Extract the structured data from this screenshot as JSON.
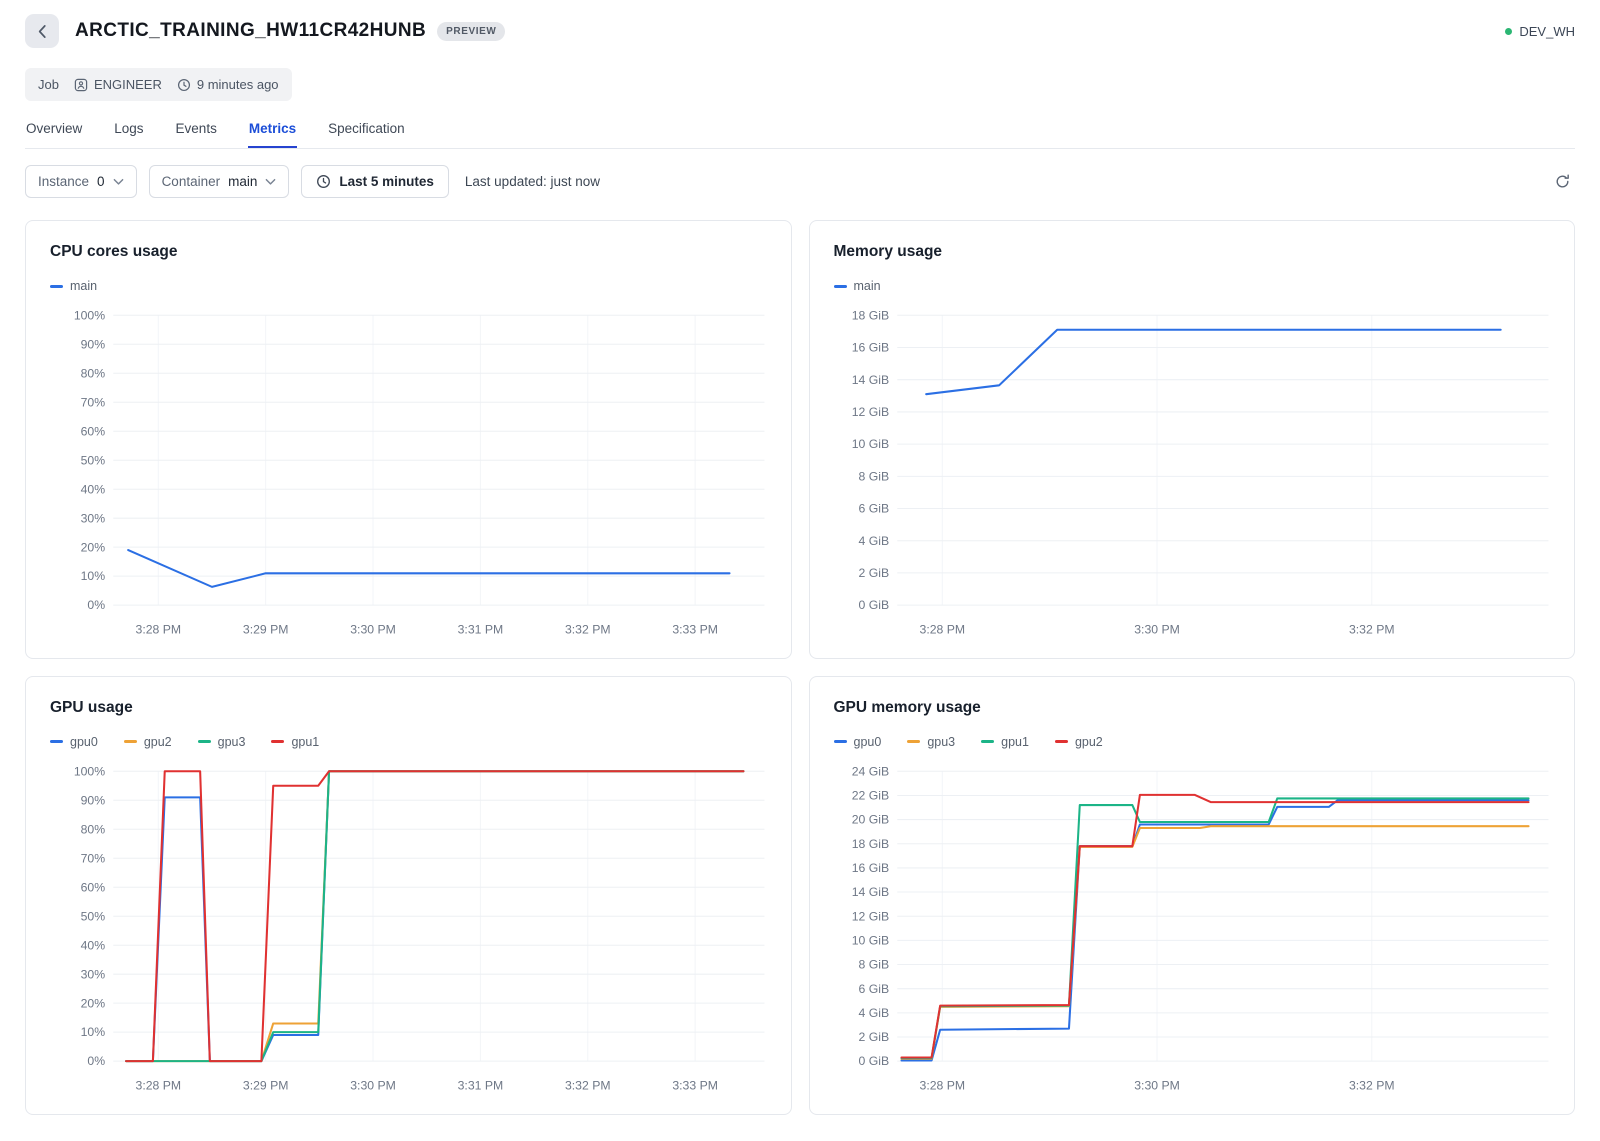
{
  "header": {
    "title": "ARCTIC_TRAINING_HW11CR42HUNB",
    "badge": "PREVIEW",
    "warehouse": "DEV_WH"
  },
  "theme": {
    "accent_blue": "#1c4ed8",
    "status_green": "#2bb673"
  },
  "meta": {
    "type": "Job",
    "role": "ENGINEER",
    "time": "9 minutes ago"
  },
  "tabs": [
    {
      "label": "Overview",
      "active": false
    },
    {
      "label": "Logs",
      "active": false
    },
    {
      "label": "Events",
      "active": false
    },
    {
      "label": "Metrics",
      "active": true
    },
    {
      "label": "Specification",
      "active": false
    }
  ],
  "filters": {
    "instance_label": "Instance",
    "instance_value": "0",
    "container_label": "Container",
    "container_value": "main",
    "range_label": "Last 5 minutes",
    "last_updated": "Last updated: just now"
  },
  "chart_data": [
    {
      "type": "line",
      "title": "CPU cores usage",
      "ylabel": "percent",
      "ylim": [
        0,
        100
      ],
      "y_ticks": [
        "0%",
        "10%",
        "20%",
        "30%",
        "40%",
        "50%",
        "60%",
        "70%",
        "80%",
        "90%",
        "100%"
      ],
      "x_domain": [
        0,
        5.95
      ],
      "x_note": "t in minutes, 0 = 3:27:36 PM",
      "x_ticks": [
        {
          "t": 0.4,
          "label": "3:28 PM"
        },
        {
          "t": 1.4,
          "label": "3:29 PM"
        },
        {
          "t": 2.4,
          "label": "3:30 PM"
        },
        {
          "t": 3.4,
          "label": "3:31 PM"
        },
        {
          "t": 4.4,
          "label": "3:32 PM"
        },
        {
          "t": 5.4,
          "label": "3:33 PM"
        }
      ],
      "series": [
        {
          "name": "main",
          "color": "#2b6fe4",
          "points": [
            [
              0.12,
              19
            ],
            [
              0.9,
              6.3
            ],
            [
              1.4,
              11
            ],
            [
              5.72,
              11
            ]
          ]
        }
      ]
    },
    {
      "type": "line",
      "title": "Memory usage",
      "ylabel": "GiB",
      "ylim": [
        0,
        18
      ],
      "y_ticks": [
        "0 GiB",
        "2 GiB",
        "4 GiB",
        "6 GiB",
        "8 GiB",
        "10 GiB",
        "12 GiB",
        "14 GiB",
        "16 GiB",
        "18 GiB"
      ],
      "x_domain": [
        0,
        5.95
      ],
      "x_note": "t in minutes, 0 = 3:27:36 PM",
      "x_ticks": [
        {
          "t": 0.4,
          "label": "3:28 PM"
        },
        {
          "t": 2.4,
          "label": "3:30 PM"
        },
        {
          "t": 4.4,
          "label": "3:32 PM"
        }
      ],
      "series": [
        {
          "name": "main",
          "color": "#2b6fe4",
          "points": [
            [
              0.25,
              13.1
            ],
            [
              0.93,
              13.65
            ],
            [
              1.47,
              17.1
            ],
            [
              5.6,
              17.1
            ]
          ]
        }
      ]
    },
    {
      "type": "line",
      "title": "GPU usage",
      "ylabel": "percent",
      "ylim": [
        0,
        100
      ],
      "y_ticks": [
        "0%",
        "10%",
        "20%",
        "30%",
        "40%",
        "50%",
        "60%",
        "70%",
        "80%",
        "90%",
        "100%"
      ],
      "x_domain": [
        0,
        5.95
      ],
      "x_note": "t in minutes, 0 = 3:27:36 PM",
      "x_ticks": [
        {
          "t": 0.4,
          "label": "3:28 PM"
        },
        {
          "t": 1.4,
          "label": "3:29 PM"
        },
        {
          "t": 2.4,
          "label": "3:30 PM"
        },
        {
          "t": 3.4,
          "label": "3:31 PM"
        },
        {
          "t": 4.4,
          "label": "3:32 PM"
        },
        {
          "t": 5.4,
          "label": "3:33 PM"
        }
      ],
      "series": [
        {
          "name": "gpu0",
          "color": "#2b6fe4",
          "points": [
            [
              0.1,
              0
            ],
            [
              0.35,
              0
            ],
            [
              0.46,
              91
            ],
            [
              0.79,
              91
            ],
            [
              0.88,
              0
            ],
            [
              1.36,
              0
            ],
            [
              1.47,
              9
            ],
            [
              1.89,
              9
            ],
            [
              1.99,
              100
            ],
            [
              5.85,
              100
            ]
          ]
        },
        {
          "name": "gpu2",
          "color": "#eea236",
          "points": [
            [
              0.1,
              0
            ],
            [
              1.36,
              0
            ],
            [
              1.47,
              13
            ],
            [
              1.89,
              13
            ],
            [
              1.99,
              100
            ],
            [
              5.85,
              100
            ]
          ]
        },
        {
          "name": "gpu3",
          "color": "#1cb487",
          "points": [
            [
              0.1,
              0
            ],
            [
              1.36,
              0
            ],
            [
              1.47,
              10
            ],
            [
              1.89,
              10
            ],
            [
              1.99,
              100
            ],
            [
              5.85,
              100
            ]
          ]
        },
        {
          "name": "gpu1",
          "color": "#e03131",
          "points": [
            [
              0.1,
              0
            ],
            [
              0.35,
              0
            ],
            [
              0.46,
              100
            ],
            [
              0.79,
              100
            ],
            [
              0.88,
              0
            ],
            [
              1.36,
              0
            ],
            [
              1.47,
              95
            ],
            [
              1.89,
              95
            ],
            [
              1.99,
              100
            ],
            [
              5.85,
              100
            ]
          ]
        }
      ]
    },
    {
      "type": "line",
      "title": "GPU memory usage",
      "ylabel": "GiB",
      "ylim": [
        0,
        24
      ],
      "y_ticks": [
        "0 GiB",
        "2 GiB",
        "4 GiB",
        "6 GiB",
        "8 GiB",
        "10 GiB",
        "12 GiB",
        "14 GiB",
        "16 GiB",
        "18 GiB",
        "20 GiB",
        "22 GiB",
        "24 GiB"
      ],
      "x_domain": [
        0,
        5.95
      ],
      "x_note": "t in minutes, 0 = 3:27:36 PM",
      "x_ticks": [
        {
          "t": 0.4,
          "label": "3:28 PM"
        },
        {
          "t": 2.4,
          "label": "3:30 PM"
        },
        {
          "t": 4.4,
          "label": "3:32 PM"
        }
      ],
      "series": [
        {
          "name": "gpu0",
          "color": "#2b6fe4",
          "points": [
            [
              0.02,
              0.05
            ],
            [
              0.3,
              0.05
            ],
            [
              0.38,
              2.6
            ],
            [
              1.58,
              2.7
            ],
            [
              1.68,
              17.8
            ],
            [
              2.17,
              17.8
            ],
            [
              2.24,
              19.6
            ],
            [
              3.44,
              19.6
            ],
            [
              3.52,
              21.05
            ],
            [
              4.0,
              21.05
            ],
            [
              4.08,
              21.6
            ],
            [
              5.86,
              21.6
            ]
          ]
        },
        {
          "name": "gpu3",
          "color": "#eea236",
          "points": [
            [
              0.02,
              0.2
            ],
            [
              0.3,
              0.2
            ],
            [
              0.38,
              4.5
            ],
            [
              1.58,
              4.55
            ],
            [
              1.68,
              17.75
            ],
            [
              2.17,
              17.75
            ],
            [
              2.24,
              19.3
            ],
            [
              2.8,
              19.3
            ],
            [
              2.9,
              19.45
            ],
            [
              5.86,
              19.45
            ]
          ]
        },
        {
          "name": "gpu1",
          "color": "#1cb487",
          "points": [
            [
              0.02,
              0.25
            ],
            [
              0.3,
              0.25
            ],
            [
              0.38,
              4.55
            ],
            [
              1.58,
              4.6
            ],
            [
              1.68,
              21.2
            ],
            [
              2.17,
              21.2
            ],
            [
              2.24,
              19.8
            ],
            [
              3.44,
              19.8
            ],
            [
              3.52,
              21.75
            ],
            [
              5.86,
              21.75
            ]
          ]
        },
        {
          "name": "gpu2",
          "color": "#e03131",
          "points": [
            [
              0.02,
              0.3
            ],
            [
              0.3,
              0.3
            ],
            [
              0.38,
              4.6
            ],
            [
              1.58,
              4.65
            ],
            [
              1.68,
              17.8
            ],
            [
              2.17,
              17.8
            ],
            [
              2.24,
              22.05
            ],
            [
              2.75,
              22.05
            ],
            [
              2.9,
              21.45
            ],
            [
              5.86,
              21.45
            ]
          ]
        }
      ]
    }
  ]
}
